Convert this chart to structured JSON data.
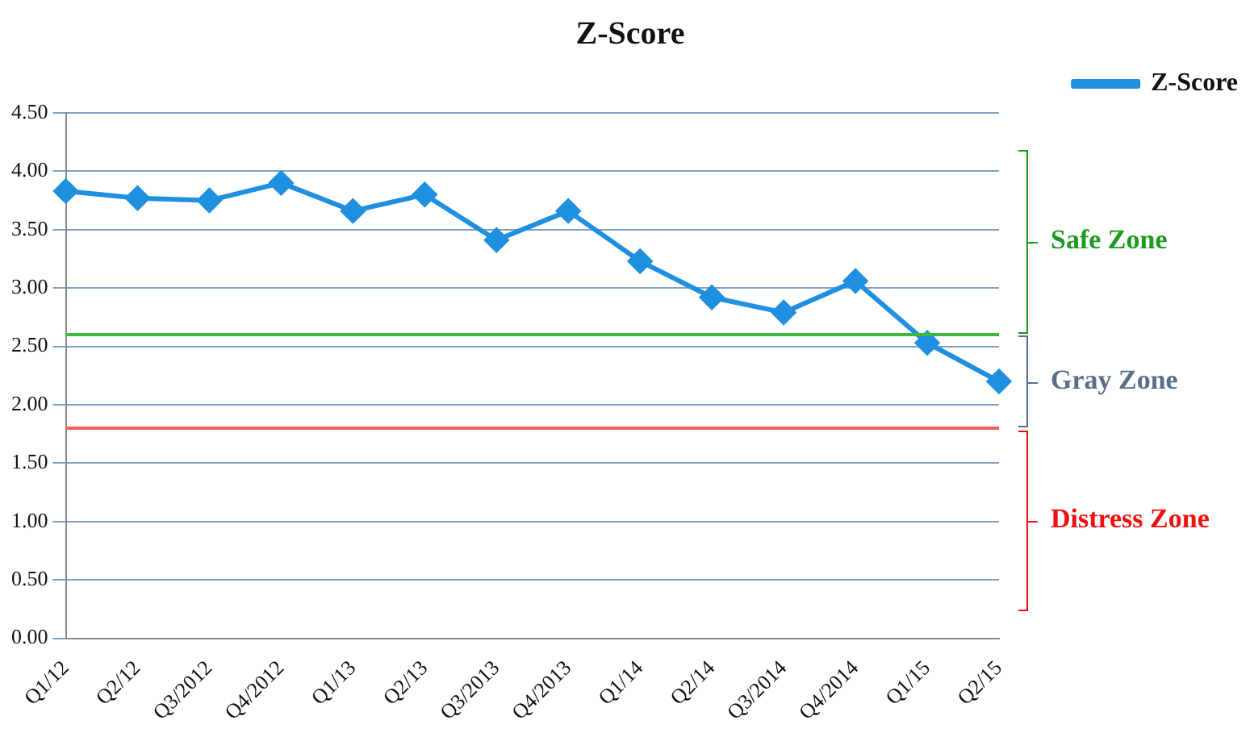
{
  "chart_data": {
    "type": "line",
    "title": "Z-Score",
    "categories": [
      "Q1/12",
      "Q2/12",
      "Q3/2012",
      "Q4/2012",
      "Q1/13",
      "Q2/13",
      "Q3/2013",
      "Q4/2013",
      "Q1/14",
      "Q2/14",
      "Q3/2014",
      "Q4/2014",
      "Q1/15",
      "Q2/15"
    ],
    "series": [
      {
        "name": "Z-Score",
        "color": "#1f8fe0",
        "values": [
          3.83,
          3.77,
          3.75,
          3.9,
          3.66,
          3.8,
          3.41,
          3.66,
          3.23,
          2.92,
          2.79,
          3.06,
          2.53,
          2.2
        ]
      }
    ],
    "ylim": [
      0,
      4.5
    ],
    "yticks": [
      {
        "value": 0,
        "label": "0.00"
      },
      {
        "value": 0.5,
        "label": "0.50"
      },
      {
        "value": 1,
        "label": "1.00"
      },
      {
        "value": 1.5,
        "label": "1.50"
      },
      {
        "value": 2,
        "label": "2.00"
      },
      {
        "value": 2.5,
        "label": "2.50"
      },
      {
        "value": 3,
        "label": "3.00"
      },
      {
        "value": 3.5,
        "label": "3.50"
      },
      {
        "value": 4,
        "label": "4.00"
      },
      {
        "value": 4.5,
        "label": "4.50"
      }
    ],
    "ref_lines": [
      {
        "axis": "y",
        "value": 2.6,
        "color": "#3cb83c"
      },
      {
        "axis": "y",
        "value": 1.8,
        "color": "#f06060"
      }
    ],
    "annotations": [
      "Safe Zone",
      "Gray Zone",
      "Distress Zone"
    ],
    "grid": "y",
    "legend": "top right",
    "marker": "diamond",
    "line_style": "solid"
  }
}
